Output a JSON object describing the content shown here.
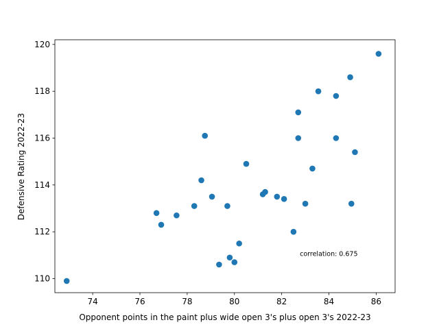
{
  "chart_data": {
    "type": "scatter",
    "xlabel": "Opponent points in the paint plus wide open 3's plus open 3's 2022-23",
    "ylabel": "Defensive Rating 2022-23",
    "xlim": [
      72.4,
      86.8
    ],
    "ylim": [
      109.4,
      120.2
    ],
    "x_ticks": [
      74,
      76,
      78,
      80,
      82,
      84,
      86
    ],
    "y_ticks": [
      110,
      112,
      114,
      116,
      118,
      120
    ],
    "grid": false,
    "marker_color": "#1f77b4",
    "annotation": {
      "text": "correlation: 0.675",
      "x": 83.0,
      "y": 111.05
    },
    "points": [
      {
        "x": 72.9,
        "y": 109.9
      },
      {
        "x": 76.7,
        "y": 112.8
      },
      {
        "x": 76.9,
        "y": 112.3
      },
      {
        "x": 77.55,
        "y": 112.7
      },
      {
        "x": 78.3,
        "y": 113.1
      },
      {
        "x": 78.6,
        "y": 114.2
      },
      {
        "x": 78.75,
        "y": 116.1
      },
      {
        "x": 79.05,
        "y": 113.5
      },
      {
        "x": 79.35,
        "y": 110.6
      },
      {
        "x": 79.7,
        "y": 113.1
      },
      {
        "x": 79.8,
        "y": 110.9
      },
      {
        "x": 80.0,
        "y": 110.7
      },
      {
        "x": 80.2,
        "y": 111.5
      },
      {
        "x": 80.5,
        "y": 114.9
      },
      {
        "x": 81.2,
        "y": 113.6
      },
      {
        "x": 81.3,
        "y": 113.7
      },
      {
        "x": 81.8,
        "y": 113.5
      },
      {
        "x": 82.1,
        "y": 113.4
      },
      {
        "x": 82.5,
        "y": 112.0
      },
      {
        "x": 82.7,
        "y": 117.1
      },
      {
        "x": 82.7,
        "y": 116.0
      },
      {
        "x": 83.0,
        "y": 113.2
      },
      {
        "x": 83.3,
        "y": 114.7
      },
      {
        "x": 83.55,
        "y": 118.0
      },
      {
        "x": 84.3,
        "y": 117.8
      },
      {
        "x": 84.3,
        "y": 116.0
      },
      {
        "x": 84.9,
        "y": 118.6
      },
      {
        "x": 84.95,
        "y": 113.2
      },
      {
        "x": 85.1,
        "y": 115.4
      },
      {
        "x": 86.1,
        "y": 119.6
      }
    ]
  }
}
